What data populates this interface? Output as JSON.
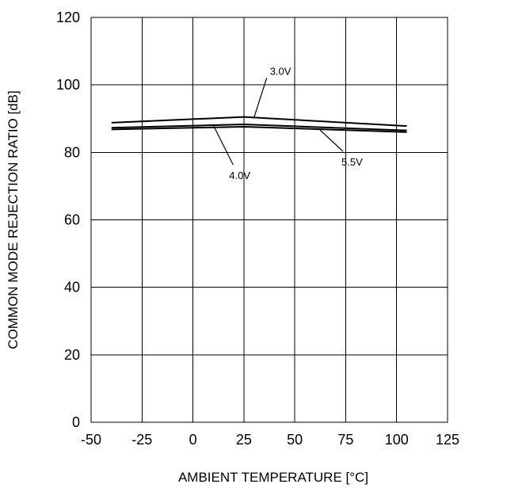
{
  "chart_data": {
    "type": "line",
    "xlabel": "AMBIENT TEMPERATURE [°C]",
    "ylabel": "COMMON MODE REJECTION RATIO [dB]",
    "xlim": [
      -50,
      125
    ],
    "ylim": [
      0,
      120
    ],
    "xticks": [
      -50,
      -25,
      0,
      25,
      50,
      75,
      100,
      125
    ],
    "yticks": [
      0,
      20,
      40,
      60,
      80,
      100,
      120
    ],
    "grid": true,
    "series": [
      {
        "name": "3.0V",
        "x": [
          -40,
          25,
          105
        ],
        "y": [
          88.8,
          90.5,
          87.8
        ]
      },
      {
        "name": "4.0V",
        "x": [
          -40,
          25,
          105
        ],
        "y": [
          87.3,
          88.3,
          86.5
        ]
      },
      {
        "name": "5.5V",
        "x": [
          -40,
          25,
          105
        ],
        "y": [
          86.8,
          87.6,
          86.0
        ]
      }
    ],
    "annotations": [
      {
        "text": "3.0V",
        "series": "3.0V"
      },
      {
        "text": "4.0V",
        "series": "4.0V"
      },
      {
        "text": "5.5V",
        "series": "5.5V"
      }
    ]
  }
}
